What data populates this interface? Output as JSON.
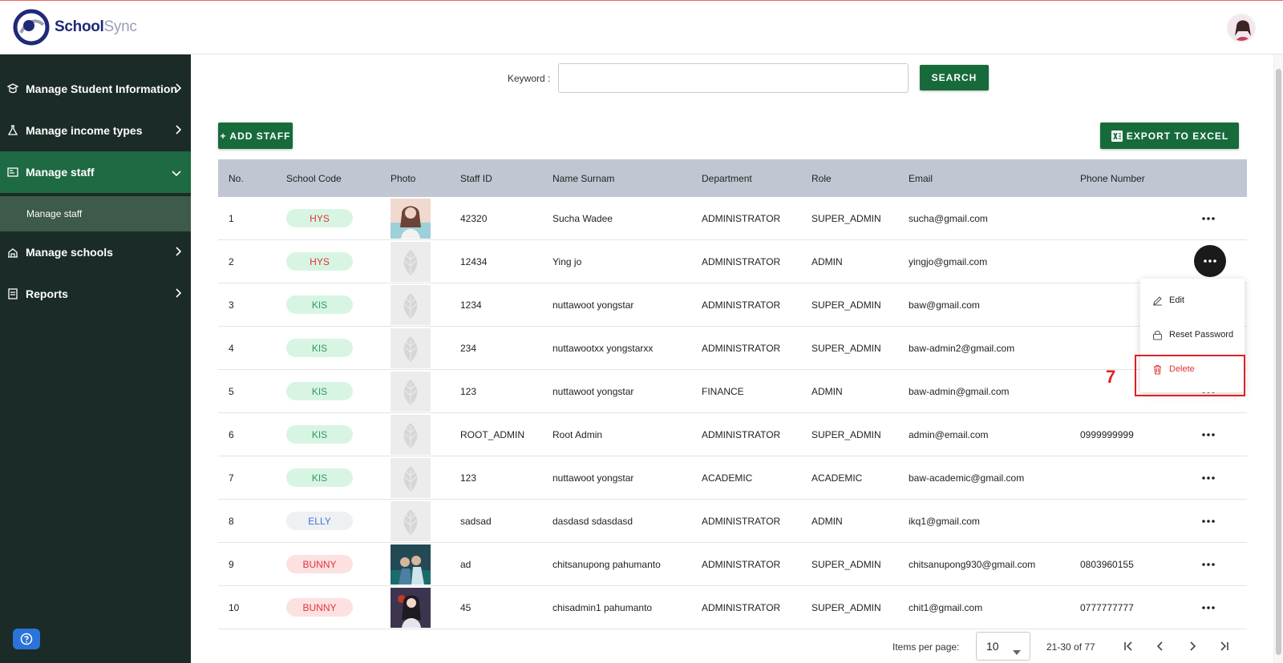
{
  "app": {
    "name_primary": "School",
    "name_secondary": "Sync"
  },
  "sidebar": {
    "items": [
      {
        "label": "Manage Student Information",
        "icon": "graduation-cap-icon"
      },
      {
        "label": "Manage income types",
        "icon": "flask-icon"
      },
      {
        "label": "Manage staff",
        "icon": "id-card-icon",
        "active": true
      },
      {
        "label": "Manage schools",
        "icon": "school-icon"
      },
      {
        "label": "Reports",
        "icon": "report-icon"
      }
    ],
    "sub_item": "Manage staff"
  },
  "search": {
    "label": "Keyword :",
    "value": "",
    "placeholder": "",
    "button": "SEARCH"
  },
  "toolbar": {
    "add_label": "+ ADD STAFF",
    "export_label": "EXPORT TO EXCEL"
  },
  "table": {
    "columns": [
      "No.",
      "School Code",
      "Photo",
      "Staff ID",
      "Name Surnam",
      "Department",
      "Role",
      "Email",
      "Phone Number"
    ],
    "rows": [
      {
        "no": "1",
        "school": "HYS",
        "staff_id": "42320",
        "name": "Sucha Wadee",
        "dept": "ADMINISTRATOR",
        "role": "SUPER_ADMIN",
        "email": "sucha@gmail.com",
        "phone": ""
      },
      {
        "no": "2",
        "school": "HYS",
        "staff_id": "12434",
        "name": "Ying jo",
        "dept": "ADMINISTRATOR",
        "role": "ADMIN",
        "email": "yingjo@gmail.com",
        "phone": ""
      },
      {
        "no": "3",
        "school": "KIS",
        "staff_id": "1234",
        "name": "nuttawoot yongstar",
        "dept": "ADMINISTRATOR",
        "role": "SUPER_ADMIN",
        "email": "baw@gmail.com",
        "phone": ""
      },
      {
        "no": "4",
        "school": "KIS",
        "staff_id": "234",
        "name": "nuttawootxx yongstarxx",
        "dept": "ADMINISTRATOR",
        "role": "SUPER_ADMIN",
        "email": "baw-admin2@gmail.com",
        "phone": ""
      },
      {
        "no": "5",
        "school": "KIS",
        "staff_id": "123",
        "name": "nuttawoot yongstar",
        "dept": "FINANCE",
        "role": "ADMIN",
        "email": "baw-admin@gmail.com",
        "phone": ""
      },
      {
        "no": "6",
        "school": "KIS",
        "staff_id": "ROOT_ADMIN",
        "name": "Root Admin",
        "dept": "ADMINISTRATOR",
        "role": "SUPER_ADMIN",
        "email": "admin@email.com",
        "phone": "0999999999"
      },
      {
        "no": "7",
        "school": "KIS",
        "staff_id": "123",
        "name": "nuttawoot yongstar",
        "dept": "ACADEMIC",
        "role": "ACADEMIC",
        "email": "baw-academic@gmail.com",
        "phone": ""
      },
      {
        "no": "8",
        "school": "ELLY",
        "staff_id": "sadsad",
        "name": "dasdasd sdasdasd",
        "dept": "ADMINISTRATOR",
        "role": "ADMIN",
        "email": "ikq1@gmail.com",
        "phone": ""
      },
      {
        "no": "9",
        "school": "BUNNY",
        "staff_id": "ad",
        "name": "chitsanupong pahumanto",
        "dept": "ADMINISTRATOR",
        "role": "SUPER_ADMIN",
        "email": "chitsanupong930@gmail.com",
        "phone": "0803960155"
      },
      {
        "no": "10",
        "school": "BUNNY",
        "staff_id": "45",
        "name": "chisadmin1 pahumanto",
        "dept": "ADMINISTRATOR",
        "role": "SUPER_ADMIN",
        "email": "chit1@gmail.com",
        "phone": "0777777777"
      }
    ]
  },
  "row_menu": {
    "edit": "Edit",
    "reset": "Reset Password",
    "delete": "Delete"
  },
  "annotation": {
    "step": "7"
  },
  "pagination": {
    "label": "Items per page:",
    "per_page": "10",
    "range": "21-30 of 77"
  },
  "colors": {
    "accent": "#176b3b",
    "sidebar_bg": "#1b2b27",
    "pill_green_bg": "#d8f5e3",
    "pill_green_fg": "#2e9a5c",
    "pill_red_bg": "#fde1e1",
    "pill_red_fg": "#e0343a",
    "pill_blue_bg": "#eef0f3",
    "pill_blue_fg": "#3a7bd5"
  }
}
